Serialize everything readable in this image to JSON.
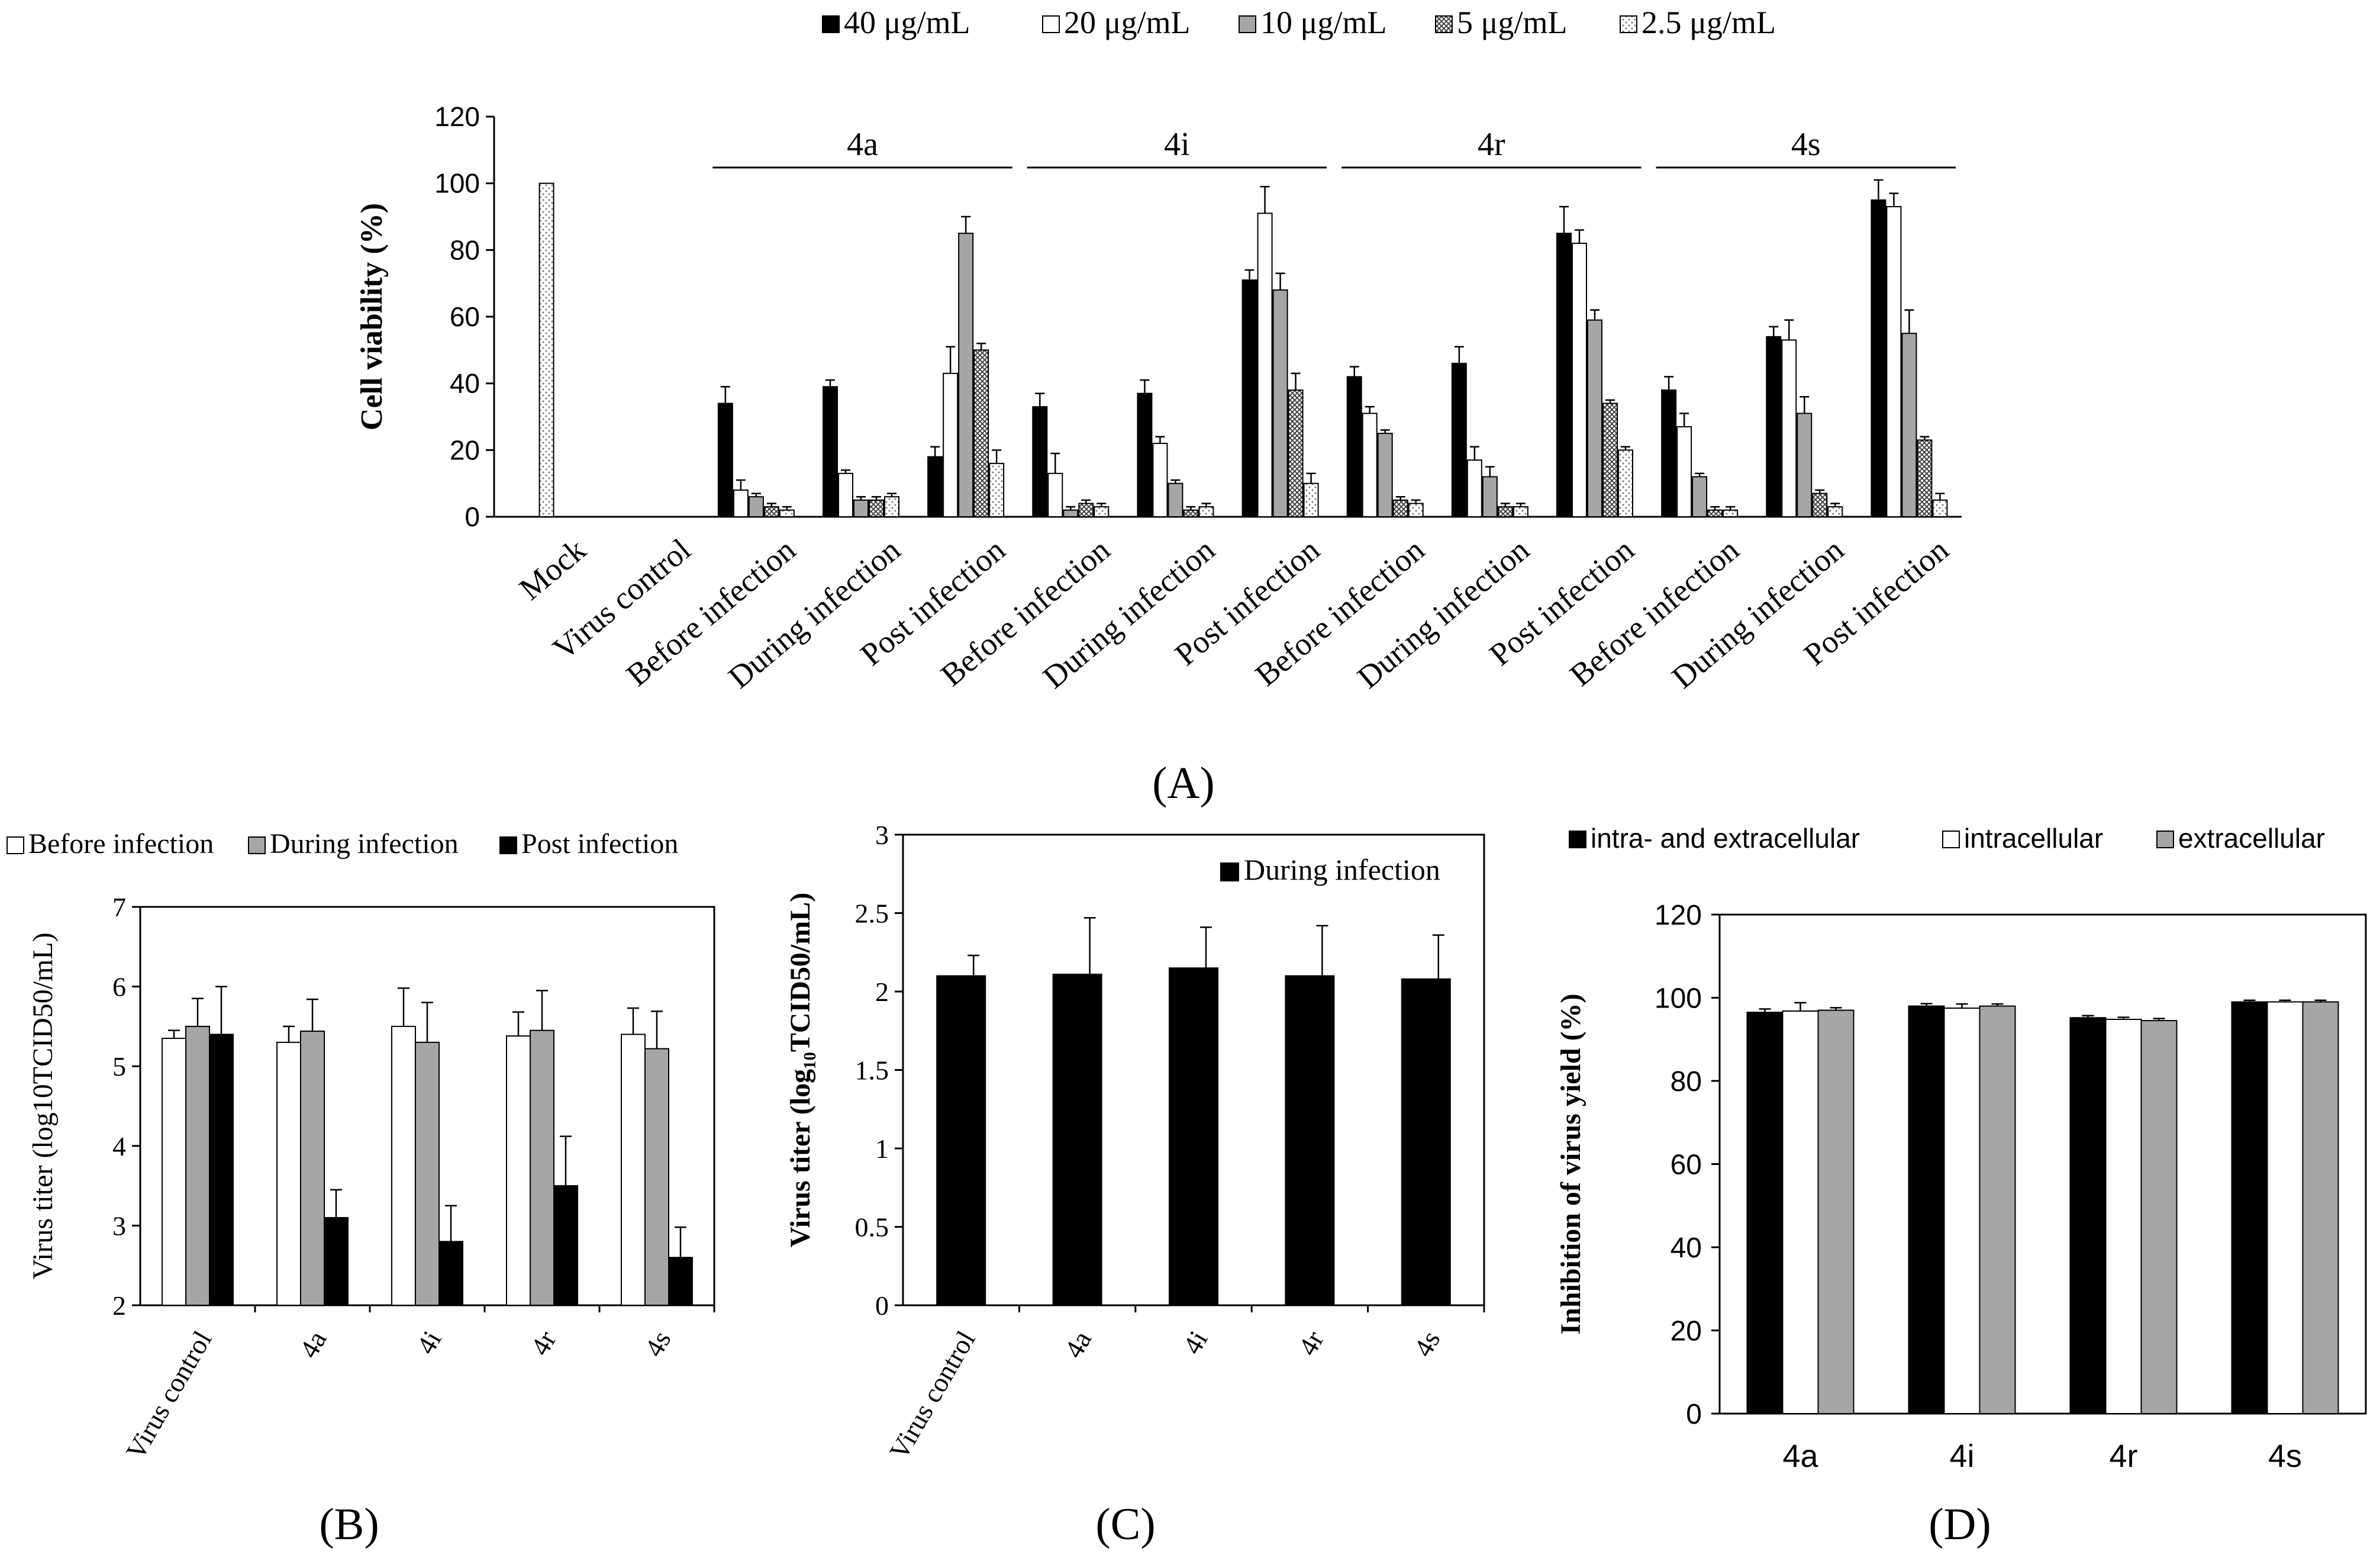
{
  "colors": {
    "black": "#000000",
    "white": "#ffffff",
    "gray": "#a6a6a6",
    "dark_hatch": "#7a7a7a",
    "light_hatch": "#c8c8c8"
  },
  "chart_data": [
    {
      "panel_label": "(A)",
      "type": "bar",
      "ylabel": "Cell viability (%)",
      "ylim": [
        0,
        120
      ],
      "yticks": [
        0,
        20,
        40,
        60,
        80,
        100,
        120
      ],
      "categories": [
        "Mock",
        "Virus control",
        "Before infection",
        "During infection",
        "Post infection",
        "Before infection",
        "During infection",
        "Post infection",
        "Before infection",
        "During infection",
        "Post infection",
        "Before infection",
        "During infection",
        "Post infection"
      ],
      "groups": [
        {
          "label": "4a",
          "categories": [
            2,
            3,
            4
          ]
        },
        {
          "label": "4i",
          "categories": [
            5,
            6,
            7
          ]
        },
        {
          "label": "4r",
          "categories": [
            8,
            9,
            10
          ]
        },
        {
          "label": "4s",
          "categories": [
            11,
            12,
            13
          ]
        }
      ],
      "series": [
        {
          "name": "40 μg/mL",
          "fill": "black",
          "values": [
            null,
            null,
            34,
            39,
            18,
            33,
            37,
            71,
            42,
            46,
            85,
            38,
            54,
            95
          ],
          "errors": [
            null,
            null,
            5,
            2,
            3,
            4,
            4,
            3,
            3,
            5,
            8,
            4,
            3,
            6
          ]
        },
        {
          "name": "20 μg/mL",
          "fill": "white",
          "values": [
            null,
            null,
            8,
            13,
            43,
            13,
            22,
            91,
            31,
            17,
            82,
            27,
            53,
            93
          ],
          "errors": [
            null,
            null,
            3,
            1,
            8,
            6,
            2,
            8,
            2,
            4,
            4,
            4,
            6,
            4
          ]
        },
        {
          "name": "10 μg/mL",
          "fill": "gray",
          "values": [
            null,
            null,
            6,
            5,
            85,
            2,
            10,
            68,
            25,
            12,
            59,
            12,
            31,
            55
          ],
          "errors": [
            null,
            null,
            1,
            1,
            5,
            1,
            1,
            5,
            1,
            3,
            3,
            1,
            5,
            7
          ]
        },
        {
          "name": "5 μg/mL",
          "fill": "dark_hatch",
          "values": [
            null,
            null,
            3,
            5,
            50,
            4,
            2,
            38,
            5,
            3,
            34,
            2,
            7,
            23
          ],
          "errors": [
            null,
            null,
            1,
            1,
            2,
            1,
            1,
            5,
            1,
            1,
            1,
            1,
            1,
            1
          ]
        },
        {
          "name": "2.5 μg/mL",
          "fill": "light_hatch",
          "values": [
            100,
            null,
            2,
            6,
            16,
            3,
            3,
            10,
            4,
            3,
            20,
            2,
            3,
            5
          ],
          "errors": [
            0,
            null,
            1,
            1,
            4,
            1,
            1,
            3,
            1,
            1,
            1,
            1,
            1,
            2
          ]
        }
      ]
    },
    {
      "panel_label": "(B)",
      "type": "bar",
      "ylabel": "Virus titer (log10TCID50/mL)",
      "ylim": [
        2,
        7
      ],
      "yticks": [
        2,
        3,
        4,
        5,
        6,
        7
      ],
      "categories": [
        "Virus control",
        "4a",
        "4i",
        "4r",
        "4s"
      ],
      "series": [
        {
          "name": "Before infection",
          "fill": "white",
          "values": [
            5.35,
            5.3,
            5.5,
            5.38,
            5.4
          ],
          "errors": [
            0.1,
            0.2,
            0.48,
            0.3,
            0.33
          ]
        },
        {
          "name": "During infection",
          "fill": "gray",
          "values": [
            5.5,
            5.44,
            5.3,
            5.45,
            5.22
          ],
          "errors": [
            0.35,
            0.4,
            0.5,
            0.5,
            0.47
          ]
        },
        {
          "name": "Post infection",
          "fill": "black",
          "values": [
            5.4,
            3.1,
            2.8,
            3.5,
            2.6
          ],
          "errors": [
            0.6,
            0.35,
            0.45,
            0.62,
            0.38
          ]
        }
      ]
    },
    {
      "panel_label": "(C)",
      "type": "bar",
      "ylabel": "Virus titer (log₁₀TCID50/mL)",
      "ylim": [
        0,
        3
      ],
      "yticks": [
        "0",
        "0.5",
        "1",
        "1.5",
        "2",
        "2.5",
        "3"
      ],
      "categories": [
        "Virus control",
        "4a",
        "4i",
        "4r",
        "4s"
      ],
      "series": [
        {
          "name": "During infection",
          "fill": "black",
          "values": [
            2.1,
            2.11,
            2.15,
            2.1,
            2.08
          ],
          "errors": [
            0.13,
            0.36,
            0.26,
            0.32,
            0.28
          ]
        }
      ]
    },
    {
      "panel_label": "(D)",
      "type": "bar",
      "ylabel": "Inhibition of virus yield (%)",
      "ylim": [
        0,
        120
      ],
      "yticks": [
        0,
        20,
        40,
        60,
        80,
        100,
        120
      ],
      "categories": [
        "4a",
        "4i",
        "4r",
        "4s"
      ],
      "series": [
        {
          "name": "intra- and extracellular",
          "fill": "black",
          "values": [
            96.5,
            98,
            95.2,
            99
          ],
          "errors": [
            0.8,
            0.6,
            0.5,
            0.4
          ]
        },
        {
          "name": "intracellular",
          "fill": "white",
          "values": [
            96.8,
            97.5,
            94.8,
            99
          ],
          "errors": [
            2,
            1,
            0.5,
            0.4
          ]
        },
        {
          "name": "extracellular",
          "fill": "gray",
          "values": [
            97,
            98,
            94.5,
            99
          ],
          "errors": [
            0.6,
            0.5,
            0.5,
            0.4
          ]
        }
      ]
    }
  ]
}
